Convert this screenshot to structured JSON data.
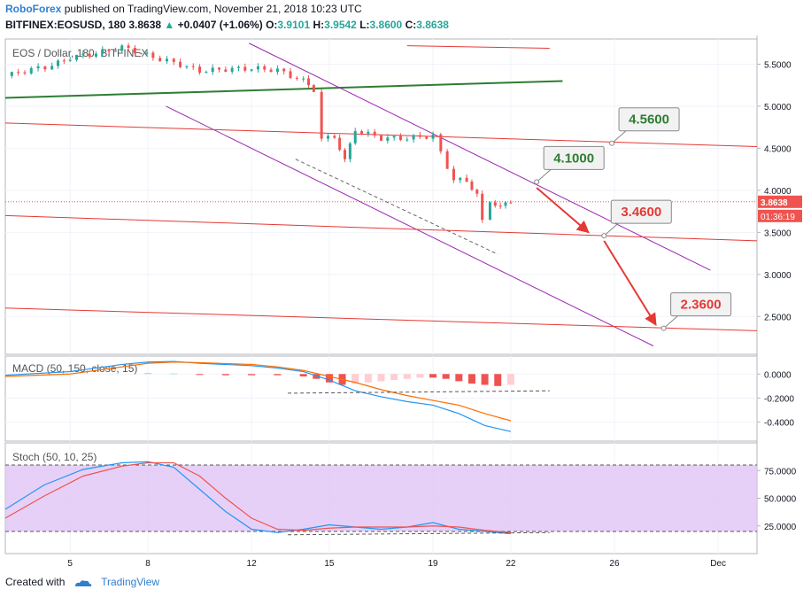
{
  "header": {
    "publisher": "RoboForex",
    "published_text": "published on TradingView.com, November 21, 2018 10:23 UTC",
    "symbol": "BITFINEX:EOSUSD, 180",
    "last": "3.8638",
    "change": "+0.0407 (+1.06%)",
    "o_label": "O:",
    "o_val": "3.9101",
    "h_label": "H:",
    "h_val": "3.9542",
    "l_label": "L:",
    "l_val": "3.8600",
    "c_label": "C:",
    "c_val": "3.8638"
  },
  "footer": {
    "created_with": "Created with",
    "brand": "TradingView"
  },
  "colors": {
    "up": "#26a69a",
    "down": "#ef5350",
    "price_line": "#ef5350",
    "trend_green": "#2e7d32",
    "channel": "#9c27b0",
    "red_line": "#e53935",
    "macd_line": "#2196f3",
    "signal_line": "#ff6d00",
    "stoch_k": "#2196f3",
    "stoch_d": "#ef5350",
    "stoch_band": "#e1c4f5"
  },
  "chart_data": [
    {
      "type": "candlestick",
      "title": "EOS / Dollar, 180, BITFINEX",
      "x_ticks": [
        "5",
        "8",
        "12",
        "15",
        "19",
        "22",
        "26",
        "Dec"
      ],
      "x_tick_days": [
        5,
        8,
        12,
        15,
        19,
        22,
        26,
        30
      ],
      "y_ticks": [
        "5.5000",
        "5.0000",
        "4.5000",
        "4.0000",
        "3.5000",
        "3.0000",
        "2.5000"
      ],
      "y_tick_values": [
        5.5,
        5.0,
        4.5,
        4.0,
        3.5,
        3.0,
        2.5
      ],
      "ylim": [
        2.05,
        5.8
      ],
      "xlim": [
        2.5,
        31.5
      ],
      "last_price": "3.8638",
      "countdown": "01:36:19",
      "close_path": [
        {
          "day": 2.5,
          "close": 5.36
        },
        {
          "day": 3.5,
          "close": 5.44
        },
        {
          "day": 4.3,
          "close": 5.48
        },
        {
          "day": 5.0,
          "close": 5.58
        },
        {
          "day": 6.0,
          "close": 5.63
        },
        {
          "day": 7.0,
          "close": 5.7
        },
        {
          "day": 7.5,
          "close": 5.66
        },
        {
          "day": 8.2,
          "close": 5.58
        },
        {
          "day": 9.0,
          "close": 5.52
        },
        {
          "day": 10.0,
          "close": 5.42
        },
        {
          "day": 11.0,
          "close": 5.44
        },
        {
          "day": 12.0,
          "close": 5.45
        },
        {
          "day": 13.0,
          "close": 5.43
        },
        {
          "day": 14.0,
          "close": 5.3
        },
        {
          "day": 14.4,
          "close": 5.2
        },
        {
          "day": 14.7,
          "close": 4.6
        },
        {
          "day": 15.2,
          "close": 4.65
        },
        {
          "day": 15.6,
          "close": 4.35
        },
        {
          "day": 16.0,
          "close": 4.72
        },
        {
          "day": 17.0,
          "close": 4.62
        },
        {
          "day": 18.0,
          "close": 4.62
        },
        {
          "day": 19.0,
          "close": 4.65
        },
        {
          "day": 19.3,
          "close": 4.45
        },
        {
          "day": 19.8,
          "close": 4.12
        },
        {
          "day": 20.3,
          "close": 4.12
        },
        {
          "day": 20.7,
          "close": 3.95
        },
        {
          "day": 20.9,
          "close": 3.62
        },
        {
          "day": 21.2,
          "close": 3.88
        },
        {
          "day": 21.6,
          "close": 3.8
        },
        {
          "day": 22.0,
          "close": 3.86
        }
      ],
      "lines": [
        {
          "kind": "trend-green",
          "points": [
            [
              2.5,
              5.1
            ],
            [
              24.0,
              5.3
            ]
          ]
        },
        {
          "kind": "channel-upper",
          "points": [
            [
              11.9,
              5.75
            ],
            [
              29.7,
              3.05
            ]
          ]
        },
        {
          "kind": "channel-lower",
          "points": [
            [
              8.7,
              5.0
            ],
            [
              27.5,
              2.15
            ]
          ]
        },
        {
          "kind": "red-top",
          "points": [
            [
              18.0,
              5.72
            ],
            [
              23.5,
              5.69
            ]
          ]
        },
        {
          "kind": "red",
          "points": [
            [
              2.5,
              4.8
            ],
            [
              31.5,
              4.52
            ]
          ]
        },
        {
          "kind": "red",
          "points": [
            [
              2.5,
              3.7
            ],
            [
              31.5,
              3.4
            ]
          ]
        },
        {
          "kind": "red",
          "points": [
            [
              2.5,
              2.6
            ],
            [
              31.5,
              2.33
            ]
          ]
        },
        {
          "kind": "dashed-support",
          "points": [
            [
              13.7,
              4.37
            ],
            [
              21.5,
              3.24
            ]
          ]
        }
      ],
      "annotations": [
        {
          "label": "4.5600",
          "color": "#2e7d32",
          "day": 25.9,
          "price": 4.56
        },
        {
          "label": "4.1000",
          "color": "#2e7d32",
          "day": 23.0,
          "price": 4.1
        },
        {
          "label": "3.4600",
          "color": "#e53935",
          "day": 25.6,
          "price": 3.46
        },
        {
          "label": "2.3600",
          "color": "#e53935",
          "day": 27.9,
          "price": 2.36
        }
      ],
      "arrows": [
        {
          "from": [
            23.0,
            4.03
          ],
          "to": [
            25.0,
            3.5
          ]
        },
        {
          "from": [
            25.6,
            3.4
          ],
          "to": [
            27.6,
            2.4
          ]
        }
      ]
    },
    {
      "type": "line",
      "title": "MACD (50, 150, close, 15)",
      "y_ticks": [
        "0.0000",
        "-0.2000",
        "-0.4000"
      ],
      "y_tick_values": [
        0.0,
        -0.2,
        -0.4
      ],
      "ylim": [
        -0.56,
        0.15
      ],
      "series": [
        {
          "role": "macd",
          "points": [
            [
              2.5,
              -0.01
            ],
            [
              5,
              0.02
            ],
            [
              7,
              0.08
            ],
            [
              8,
              0.1
            ],
            [
              9,
              0.105
            ],
            [
              10,
              0.09
            ],
            [
              12,
              0.07
            ],
            [
              13,
              0.05
            ],
            [
              14,
              0.02
            ],
            [
              15,
              -0.05
            ],
            [
              16,
              -0.14
            ],
            [
              17,
              -0.19
            ],
            [
              18,
              -0.23
            ],
            [
              19,
              -0.26
            ],
            [
              20,
              -0.33
            ],
            [
              21,
              -0.43
            ],
            [
              22,
              -0.48
            ]
          ]
        },
        {
          "role": "signal",
          "points": [
            [
              2.5,
              -0.02
            ],
            [
              5,
              0.0
            ],
            [
              7,
              0.06
            ],
            [
              8,
              0.09
            ],
            [
              9,
              0.1
            ],
            [
              10,
              0.095
            ],
            [
              12,
              0.08
            ],
            [
              13,
              0.06
            ],
            [
              14,
              0.03
            ],
            [
              15,
              -0.02
            ],
            [
              16,
              -0.07
            ],
            [
              17,
              -0.13
            ],
            [
              18,
              -0.18
            ],
            [
              19,
              -0.22
            ],
            [
              20,
              -0.26
            ],
            [
              21,
              -0.33
            ],
            [
              22,
              -0.39
            ]
          ]
        }
      ],
      "histogram_days": [
        8,
        9,
        10,
        11,
        12,
        13,
        14,
        14.5,
        15,
        15.5,
        16,
        16.5,
        17,
        17.5,
        18,
        18.5,
        19,
        19.5,
        20,
        20.5,
        21,
        21.5,
        22
      ],
      "histogram_values": [
        0.01,
        0.005,
        -0.005,
        -0.01,
        -0.01,
        -0.01,
        -0.02,
        -0.04,
        -0.07,
        -0.09,
        -0.08,
        -0.07,
        -0.06,
        -0.05,
        -0.04,
        -0.03,
        -0.03,
        -0.04,
        -0.06,
        -0.08,
        -0.09,
        -0.1,
        -0.09
      ],
      "dashed_line": [
        [
          13.4,
          -0.16
        ],
        [
          23.5,
          -0.14
        ]
      ]
    },
    {
      "type": "line",
      "title": "Stoch (50, 10, 25)",
      "y_ticks": [
        "75.0000",
        "50.0000",
        "25.0000"
      ],
      "y_tick_values": [
        75,
        50,
        25
      ],
      "ylim": [
        0,
        100
      ],
      "band": [
        20,
        80
      ],
      "series": [
        {
          "role": "%K",
          "points": [
            [
              2.5,
              40
            ],
            [
              4,
              62
            ],
            [
              5.5,
              76
            ],
            [
              7,
              82
            ],
            [
              8,
              83
            ],
            [
              9,
              78
            ],
            [
              10,
              58
            ],
            [
              11,
              38
            ],
            [
              12,
              22
            ],
            [
              13,
              19
            ],
            [
              14,
              22
            ],
            [
              15,
              26
            ],
            [
              16,
              24
            ],
            [
              17,
              22
            ],
            [
              18,
              24
            ],
            [
              19,
              28
            ],
            [
              20,
              22
            ],
            [
              21,
              20
            ],
            [
              22,
              18
            ]
          ]
        },
        {
          "role": "%D",
          "points": [
            [
              2.5,
              32
            ],
            [
              4,
              52
            ],
            [
              5.5,
              70
            ],
            [
              7,
              79
            ],
            [
              8,
              82
            ],
            [
              9,
              82
            ],
            [
              10,
              70
            ],
            [
              11,
              50
            ],
            [
              12,
              32
            ],
            [
              13,
              22
            ],
            [
              14,
              21
            ],
            [
              15,
              23
            ],
            [
              16,
              24
            ],
            [
              17,
              24
            ],
            [
              18,
              24
            ],
            [
              19,
              25
            ],
            [
              20,
              24
            ],
            [
              21,
              21
            ],
            [
              22,
              19
            ]
          ]
        }
      ],
      "dashed_line": [
        [
          13.4,
          17
        ],
        [
          23.5,
          19
        ]
      ]
    }
  ]
}
